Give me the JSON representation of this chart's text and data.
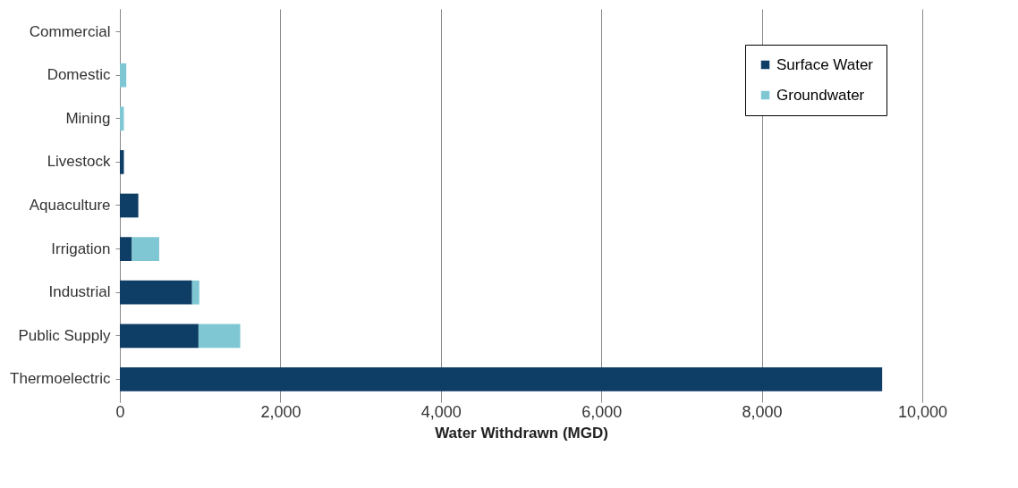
{
  "chart_data": {
    "type": "bar",
    "orientation": "horizontal",
    "stacked": true,
    "xlabel": "Water Withdrawn (MGD)",
    "categories": [
      "Commercial",
      "Domestic",
      "Mining",
      "Livestock",
      "Aquaculture",
      "Irrigation",
      "Industrial",
      "Public Supply",
      "Thermoelectric"
    ],
    "series": [
      {
        "name": "Surface Water",
        "color": "#0e3d66",
        "values": [
          0,
          0,
          0,
          50,
          230,
          150,
          900,
          980,
          9500
        ]
      },
      {
        "name": "Groundwater",
        "color": "#80c7d4",
        "values": [
          0,
          80,
          50,
          0,
          0,
          340,
          90,
          520,
          0
        ]
      }
    ],
    "xlim": [
      0,
      10000
    ],
    "xticks": [
      {
        "value": 0,
        "label": "0"
      },
      {
        "value": 2000,
        "label": "2,000"
      },
      {
        "value": 4000,
        "label": "4,000"
      },
      {
        "value": 6000,
        "label": "6,000"
      },
      {
        "value": 8000,
        "label": "8,000"
      },
      {
        "value": 10000,
        "label": "10,000"
      }
    ],
    "grid": "x",
    "legend": "top right"
  }
}
